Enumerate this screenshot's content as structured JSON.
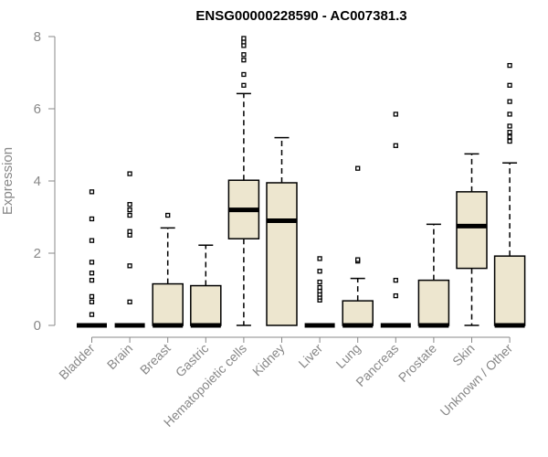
{
  "chart_data": {
    "type": "boxplot",
    "title": "ENSG00000228590 - AC007381.3",
    "ylabel": "Expression",
    "xlabel": "",
    "ylim": [
      0,
      8
    ],
    "yticks": [
      0,
      2,
      4,
      6,
      8
    ],
    "grid": false,
    "legend": "none",
    "box_fill": "#ede6cf",
    "box_stroke": "#000000",
    "categories": [
      "Bladder",
      "Brain",
      "Breast",
      "Gastric",
      "Hematopoietic cells",
      "Kidney",
      "Liver",
      "Lung",
      "Pancreas",
      "Prostate",
      "Skin",
      "Unknown / Other"
    ],
    "boxes": [
      {
        "category": "Bladder",
        "min": 0,
        "q1": 0,
        "median": 0,
        "q3": 0,
        "max": 0,
        "outliers": [
          0.3,
          0.65,
          0.8,
          1.25,
          1.45,
          1.75,
          2.35,
          2.95,
          3.7
        ]
      },
      {
        "category": "Brain",
        "min": 0,
        "q1": 0,
        "median": 0,
        "q3": 0,
        "max": 0,
        "outliers": [
          0.65,
          1.65,
          2.5,
          2.6,
          3.05,
          3.2,
          3.35,
          4.2
        ]
      },
      {
        "category": "Breast",
        "min": 0,
        "q1": 0,
        "median": 0,
        "q3": 1.15,
        "max": 2.7,
        "outliers": [
          3.05
        ]
      },
      {
        "category": "Gastric",
        "min": 0,
        "q1": 0,
        "median": 0,
        "q3": 1.1,
        "max": 2.22,
        "outliers": []
      },
      {
        "category": "Hematopoietic cells",
        "min": 0,
        "q1": 2.4,
        "median": 3.2,
        "q3": 4.02,
        "max": 6.42,
        "outliers": [
          6.65,
          6.95,
          7.35,
          7.5,
          7.75,
          7.85,
          7.95
        ]
      },
      {
        "category": "Kidney",
        "min": 0,
        "q1": 0,
        "median": 2.9,
        "q3": 3.95,
        "max": 5.2,
        "outliers": []
      },
      {
        "category": "Liver",
        "min": 0,
        "q1": 0,
        "median": 0,
        "q3": 0,
        "max": 0,
        "outliers": [
          0.7,
          0.78,
          0.86,
          0.95,
          1.05,
          1.2,
          1.5,
          1.85
        ]
      },
      {
        "category": "Lung",
        "min": 0,
        "q1": 0,
        "median": 0,
        "q3": 0.68,
        "max": 1.3,
        "outliers": [
          1.78,
          1.82,
          4.35
        ]
      },
      {
        "category": "Pancreas",
        "min": 0,
        "q1": 0,
        "median": 0,
        "q3": 0,
        "max": 0,
        "outliers": [
          0.82,
          1.25,
          4.98,
          5.85
        ]
      },
      {
        "category": "Prostate",
        "min": 0,
        "q1": 0,
        "median": 0,
        "q3": 1.25,
        "max": 2.8,
        "outliers": []
      },
      {
        "category": "Skin",
        "min": 0,
        "q1": 1.58,
        "median": 2.75,
        "q3": 3.7,
        "max": 4.75,
        "outliers": []
      },
      {
        "category": "Unknown / Other",
        "min": 0,
        "q1": 0,
        "median": 0,
        "q3": 1.92,
        "max": 4.5,
        "outliers": [
          5.1,
          5.22,
          5.35,
          5.52,
          5.85,
          6.2,
          6.65,
          7.2
        ]
      }
    ]
  }
}
